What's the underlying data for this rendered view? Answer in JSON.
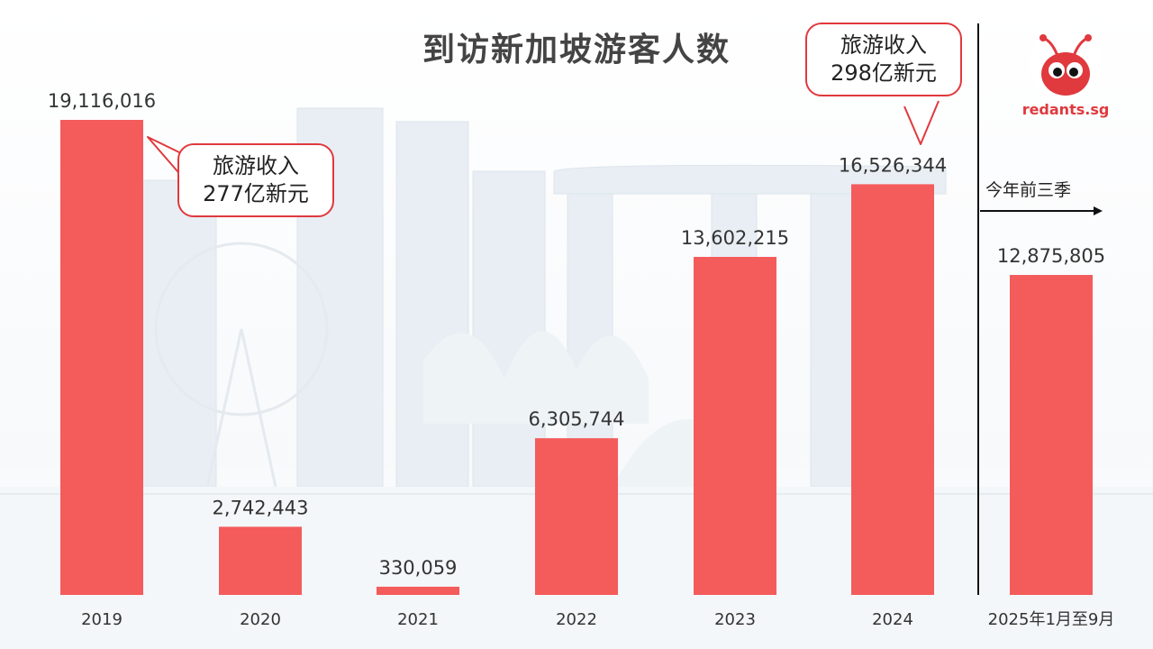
{
  "title": "到访新加坡游客人数",
  "chart_data": {
    "type": "bar",
    "title": "到访新加坡游客人数",
    "categories": [
      "2019",
      "2020",
      "2021",
      "2022",
      "2023",
      "2024",
      "2025年1月至9月"
    ],
    "values": [
      19116016,
      2742443,
      330059,
      6305744,
      13602215,
      16526344,
      12875805
    ],
    "value_labels": [
      "19,116,016",
      "2,742,443",
      "330,059",
      "6,305,744",
      "13,602,215",
      "16,526,344",
      "12,875,805"
    ],
    "ylim": [
      0,
      19116016
    ],
    "grid": false,
    "bar_color": "#f45b5b",
    "annotations": [
      {
        "category": "2019",
        "line1": "旅游收入",
        "line2": "277亿新元"
      },
      {
        "category": "2024",
        "line1": "旅游收入",
        "line2": "298亿新元"
      }
    ],
    "divider_note": "今年前三季"
  },
  "logo": {
    "text": "redants.sg",
    "color": "#e0393e"
  }
}
